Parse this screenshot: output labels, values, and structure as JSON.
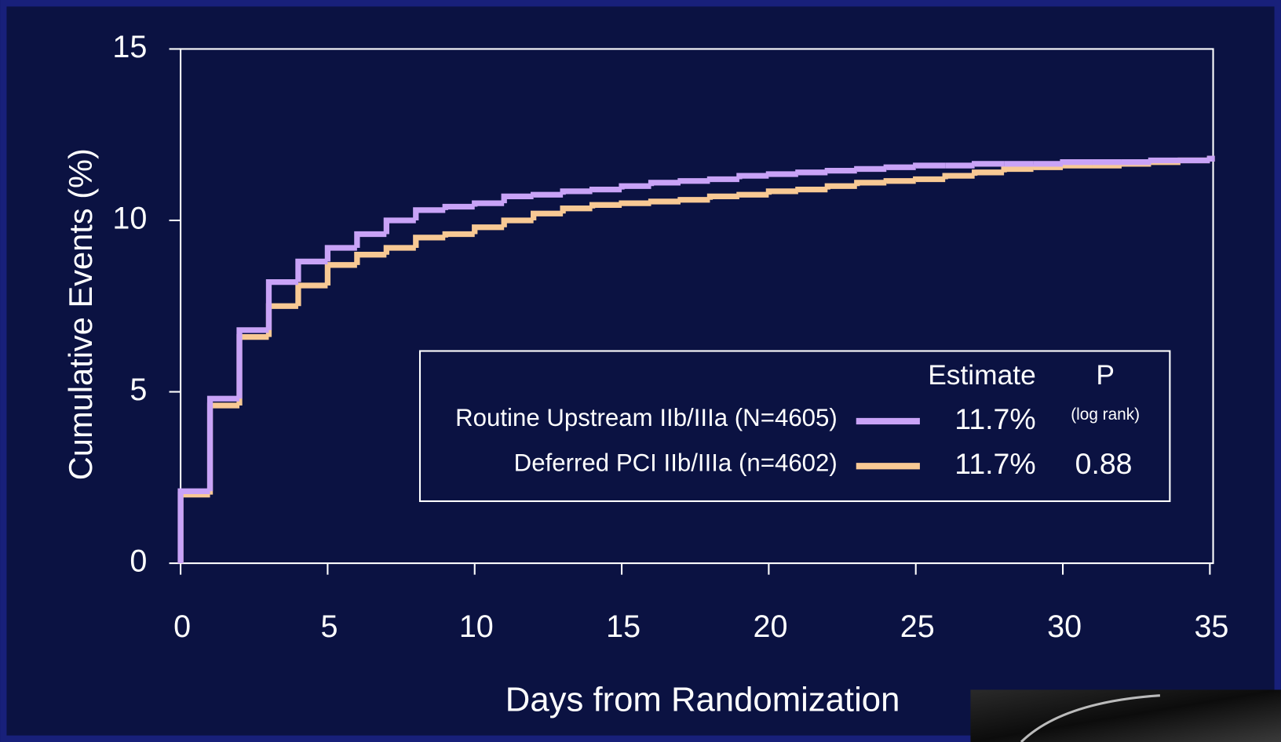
{
  "chart_data": {
    "type": "step",
    "x_label": "Days from Randomization",
    "y_label": "Cumulative Events (%)",
    "x": [
      0,
      1,
      2,
      3,
      4,
      5,
      6,
      7,
      8,
      9,
      10,
      11,
      12,
      13,
      14,
      15,
      16,
      17,
      18,
      19,
      20,
      21,
      22,
      23,
      24,
      25,
      26,
      27,
      28,
      29,
      30,
      31,
      32,
      33,
      34,
      35
    ],
    "series": [
      {
        "name": "Routine Upstream IIb/IIIa (N=4605)",
        "color": "#c9a3f7",
        "estimate": "11.7%",
        "values": [
          2.1,
          4.8,
          6.8,
          8.2,
          8.8,
          9.2,
          9.6,
          10.0,
          10.3,
          10.4,
          10.5,
          10.7,
          10.75,
          10.85,
          10.9,
          11.0,
          11.1,
          11.15,
          11.2,
          11.3,
          11.35,
          11.4,
          11.45,
          11.5,
          11.55,
          11.6,
          11.6,
          11.65,
          11.65,
          11.65,
          11.7,
          11.7,
          11.7,
          11.75,
          11.75,
          11.8
        ]
      },
      {
        "name": "Deferred PCI IIb/IIIa (n=4602)",
        "color": "#f8c994",
        "estimate": "11.7%",
        "values": [
          2.0,
          4.6,
          6.6,
          7.5,
          8.1,
          8.7,
          9.0,
          9.2,
          9.5,
          9.6,
          9.8,
          10.0,
          10.2,
          10.35,
          10.45,
          10.5,
          10.55,
          10.6,
          10.7,
          10.75,
          10.85,
          10.9,
          11.0,
          11.1,
          11.15,
          11.2,
          11.3,
          11.4,
          11.5,
          11.55,
          11.6,
          11.6,
          11.65,
          11.7,
          11.75,
          11.8
        ]
      }
    ],
    "legend_header": {
      "estimate": "Estimate",
      "p": "P",
      "p_note": "(log rank)"
    },
    "p_value": "0.88",
    "xlim": [
      0,
      35
    ],
    "xticks": [
      0,
      5,
      10,
      15,
      20,
      25,
      30,
      35
    ],
    "ylim": [
      0,
      15
    ],
    "yticks": [
      0,
      5,
      10,
      15
    ]
  }
}
